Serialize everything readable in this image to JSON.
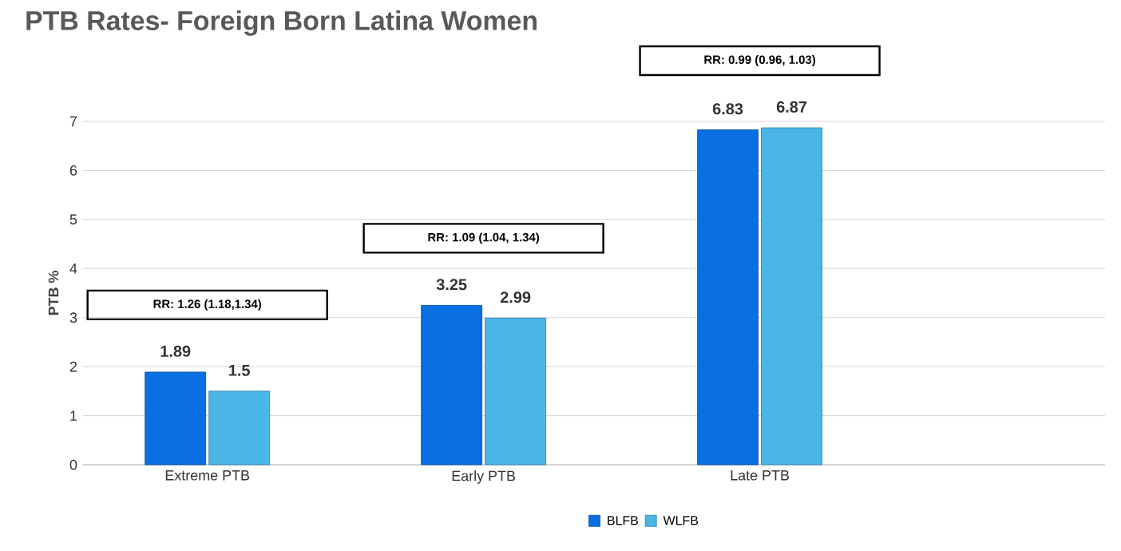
{
  "chart_data": {
    "type": "bar",
    "title": "PTB Rates- Foreign Born Latina Women",
    "ylabel": "PTB %",
    "categories": [
      "Extreme PTB",
      "Early PTB",
      "Late PTB"
    ],
    "series": [
      {
        "name": "BLFB",
        "color": "#0a6fe0",
        "values": [
          1.89,
          3.25,
          6.83
        ]
      },
      {
        "name": "WLFB",
        "color": "#4ab6e6",
        "values": [
          1.5,
          2.99,
          6.87
        ]
      }
    ],
    "ylim": [
      0,
      7
    ],
    "yticks": [
      0,
      1,
      2,
      3,
      4,
      5,
      6,
      7
    ],
    "grid": "y",
    "legend": "bottom",
    "data_labels": true,
    "annotations": [
      "RR: 1.26 (1.18,1.34)",
      "RR: 1.09 (1.04, 1.34)",
      "RR: 0.99 (0.96, 1.03)"
    ]
  }
}
